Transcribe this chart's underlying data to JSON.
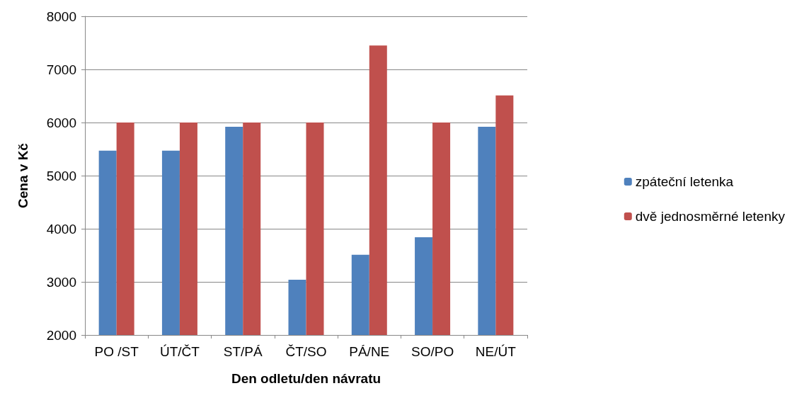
{
  "chart_data": {
    "type": "bar",
    "xlabel": "Den odletu/den návratu",
    "ylabel": "Cena v Kč",
    "categories": [
      "PO /ST",
      "ÚT/ČT",
      "ST/PÁ",
      "ČT/SO",
      "PÁ/NE",
      "SO/PO",
      "NE/ÚT"
    ],
    "series": [
      {
        "name": "zpáteční letenka",
        "color": "#4f81bd",
        "values": [
          5470,
          5470,
          5920,
          3040,
          3510,
          3840,
          5920
        ]
      },
      {
        "name": "dvě jednosměrné letenky",
        "color": "#c0504d",
        "values": [
          6000,
          6000,
          6000,
          6000,
          7450,
          6000,
          6510
        ]
      }
    ],
    "ylim": [
      2000,
      8000
    ],
    "yticks": [
      2000,
      3000,
      4000,
      5000,
      6000,
      7000,
      8000
    ],
    "grid": "y",
    "legend": "right"
  }
}
